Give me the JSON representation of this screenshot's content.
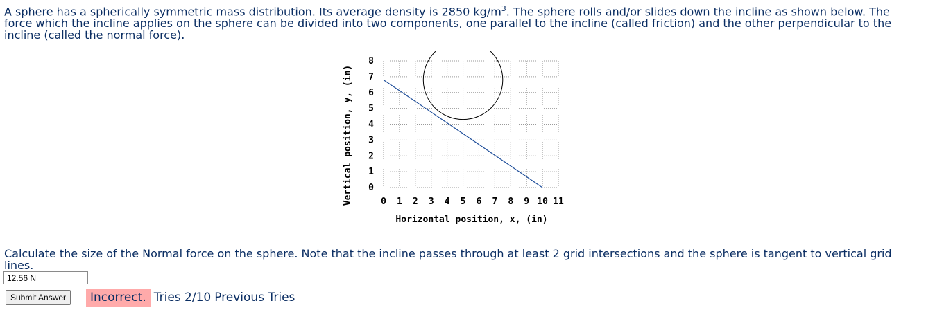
{
  "problem": {
    "text_before": "A sphere has a spherically symmetric mass distribution. Its average density is 2850 kg/m",
    "superscript": "3",
    "text_after": ". The sphere rolls and/or slides down the incline as shown below. The force which the incline applies on the sphere can be divided into two components, one parallel to the incline (called friction) and the other perpendicular to the incline (called the normal force)."
  },
  "chart_data": {
    "type": "line",
    "xlabel": "Horizontal position, x, (in)",
    "ylabel": "Vertical position, y, (in)",
    "xlim": [
      0,
      11
    ],
    "ylim": [
      0,
      8
    ],
    "xticks": [
      "0",
      "1",
      "2",
      "3",
      "4",
      "5",
      "6",
      "7",
      "8",
      "9",
      "10",
      "11"
    ],
    "yticks": [
      "0",
      "1",
      "2",
      "3",
      "4",
      "5",
      "6",
      "7",
      "8"
    ],
    "grid": true,
    "incline": {
      "x": [
        0,
        10
      ],
      "y": [
        6.8,
        0
      ]
    },
    "sphere": {
      "center_x": 5,
      "center_y": 6.8,
      "radius": 2.5
    }
  },
  "question": {
    "text": "Calculate the size of the Normal force on the sphere. Note that the incline passes through at least 2 grid intersections and the sphere is tangent to vertical grid lines."
  },
  "answer": {
    "value": "12.56 N"
  },
  "submit": {
    "label": "Submit Answer"
  },
  "status": {
    "result": "Incorrect.",
    "tries": "Tries 2/10",
    "previous_link": "Previous Tries"
  },
  "colors": {
    "text": "#0b2e63",
    "incorrect_bg": "#ffaaaa",
    "incline_line": "#1f4e9a"
  }
}
